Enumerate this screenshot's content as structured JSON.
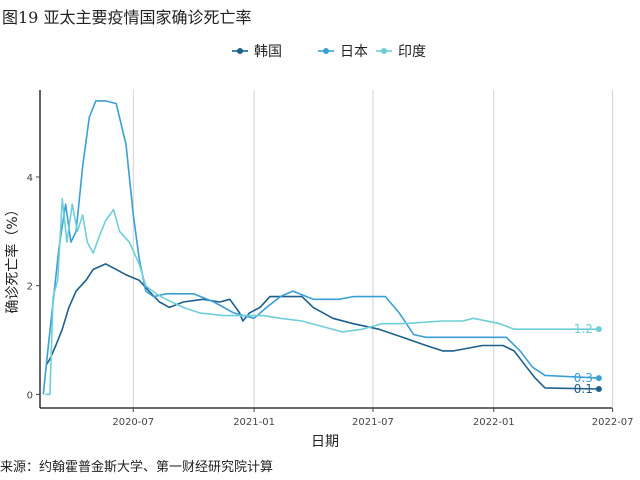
{
  "title": "图19 亚太主要疫情国家确诊死亡率",
  "source": "来源：约翰霍普金斯大学、第一财经研究院计算",
  "chart_data": {
    "type": "line",
    "xlabel": "日期",
    "ylabel": "确诊死亡率（%）",
    "ylim": [
      -0.25,
      5.6
    ],
    "xlim": [
      "2020-02-10",
      "2022-06-30"
    ],
    "x_ticks": [
      "2020-07",
      "2021-01",
      "2021-07",
      "2022-01",
      "2022-07"
    ],
    "y_ticks": [
      0,
      2,
      4
    ],
    "grid": "vertical",
    "legend_position": "top",
    "series": [
      {
        "name": "韩国",
        "color": "#1f5f8b",
        "end_label": "0.1",
        "points": [
          [
            "2020-02-20",
            0.55
          ],
          [
            "2020-02-25",
            0.65
          ],
          [
            "2020-03-05",
            0.9
          ],
          [
            "2020-03-15",
            1.2
          ],
          [
            "2020-03-25",
            1.6
          ],
          [
            "2020-04-05",
            1.9
          ],
          [
            "2020-04-20",
            2.1
          ],
          [
            "2020-05-01",
            2.3
          ],
          [
            "2020-05-20",
            2.4
          ],
          [
            "2020-06-05",
            2.3
          ],
          [
            "2020-06-20",
            2.2
          ],
          [
            "2020-07-10",
            2.1
          ],
          [
            "2020-07-25",
            1.9
          ],
          [
            "2020-08-10",
            1.7
          ],
          [
            "2020-08-25",
            1.6
          ],
          [
            "2020-09-15",
            1.7
          ],
          [
            "2020-10-15",
            1.75
          ],
          [
            "2020-11-10",
            1.7
          ],
          [
            "2020-11-25",
            1.75
          ],
          [
            "2020-12-10",
            1.5
          ],
          [
            "2020-12-15",
            1.35
          ],
          [
            "2020-12-25",
            1.5
          ],
          [
            "2021-01-10",
            1.6
          ],
          [
            "2021-01-25",
            1.8
          ],
          [
            "2021-03-15",
            1.8
          ],
          [
            "2021-04-01",
            1.6
          ],
          [
            "2021-05-01",
            1.4
          ],
          [
            "2021-06-01",
            1.3
          ],
          [
            "2021-07-10",
            1.2
          ],
          [
            "2021-08-15",
            1.05
          ],
          [
            "2021-09-20",
            0.9
          ],
          [
            "2021-10-15",
            0.8
          ],
          [
            "2021-11-01",
            0.8
          ],
          [
            "2021-12-15",
            0.9
          ],
          [
            "2022-01-15",
            0.9
          ],
          [
            "2022-02-01",
            0.8
          ],
          [
            "2022-02-20",
            0.5
          ],
          [
            "2022-03-05",
            0.3
          ],
          [
            "2022-03-20",
            0.12
          ],
          [
            "2022-06-10",
            0.1
          ]
        ]
      },
      {
        "name": "日本",
        "color": "#3a9fd6",
        "end_label": "0.3",
        "points": [
          [
            "2020-02-15",
            0.0
          ],
          [
            "2020-02-20",
            0.6
          ],
          [
            "2020-03-01",
            1.7
          ],
          [
            "2020-03-10",
            2.7
          ],
          [
            "2020-03-20",
            3.5
          ],
          [
            "2020-03-28",
            2.8
          ],
          [
            "2020-04-05",
            3.0
          ],
          [
            "2020-04-15",
            4.2
          ],
          [
            "2020-04-25",
            5.1
          ],
          [
            "2020-05-05",
            5.4
          ],
          [
            "2020-05-20",
            5.4
          ],
          [
            "2020-06-05",
            5.35
          ],
          [
            "2020-06-20",
            4.6
          ],
          [
            "2020-07-01",
            3.3
          ],
          [
            "2020-07-10",
            2.5
          ],
          [
            "2020-07-20",
            1.9
          ],
          [
            "2020-08-01",
            1.8
          ],
          [
            "2020-08-20",
            1.85
          ],
          [
            "2020-10-01",
            1.85
          ],
          [
            "2020-11-01",
            1.7
          ],
          [
            "2020-12-01",
            1.5
          ],
          [
            "2021-01-01",
            1.4
          ],
          [
            "2021-01-20",
            1.6
          ],
          [
            "2021-02-10",
            1.8
          ],
          [
            "2021-03-01",
            1.9
          ],
          [
            "2021-04-01",
            1.75
          ],
          [
            "2021-05-10",
            1.75
          ],
          [
            "2021-06-01",
            1.8
          ],
          [
            "2021-07-20",
            1.8
          ],
          [
            "2021-08-10",
            1.5
          ],
          [
            "2021-09-01",
            1.1
          ],
          [
            "2021-09-20",
            1.05
          ],
          [
            "2021-10-15",
            1.05
          ],
          [
            "2022-01-20",
            1.05
          ],
          [
            "2022-02-10",
            0.8
          ],
          [
            "2022-03-01",
            0.5
          ],
          [
            "2022-03-20",
            0.35
          ],
          [
            "2022-06-10",
            0.3
          ]
        ]
      },
      {
        "name": "印度",
        "color": "#6fcfd8",
        "end_label": "1.2",
        "points": [
          [
            "2020-02-18",
            0.0
          ],
          [
            "2020-02-25",
            0.0
          ],
          [
            "2020-03-01",
            1.8
          ],
          [
            "2020-03-08",
            2.1
          ],
          [
            "2020-03-15",
            3.6
          ],
          [
            "2020-03-22",
            2.8
          ],
          [
            "2020-03-30",
            3.5
          ],
          [
            "2020-04-07",
            3.0
          ],
          [
            "2020-04-15",
            3.3
          ],
          [
            "2020-04-22",
            2.8
          ],
          [
            "2020-05-01",
            2.6
          ],
          [
            "2020-05-10",
            2.9
          ],
          [
            "2020-05-20",
            3.2
          ],
          [
            "2020-06-01",
            3.4
          ],
          [
            "2020-06-10",
            3.0
          ],
          [
            "2020-06-25",
            2.8
          ],
          [
            "2020-07-10",
            2.4
          ],
          [
            "2020-07-20",
            2.0
          ],
          [
            "2020-08-05",
            1.85
          ],
          [
            "2020-08-20",
            1.75
          ],
          [
            "2020-09-15",
            1.6
          ],
          [
            "2020-10-10",
            1.5
          ],
          [
            "2020-11-15",
            1.45
          ],
          [
            "2020-12-15",
            1.45
          ],
          [
            "2021-01-15",
            1.45
          ],
          [
            "2021-02-10",
            1.4
          ],
          [
            "2021-03-15",
            1.35
          ],
          [
            "2021-04-15",
            1.25
          ],
          [
            "2021-05-15",
            1.15
          ],
          [
            "2021-06-15",
            1.2
          ],
          [
            "2021-07-15",
            1.3
          ],
          [
            "2021-08-15",
            1.3
          ],
          [
            "2021-10-15",
            1.35
          ],
          [
            "2021-11-15",
            1.35
          ],
          [
            "2021-12-01",
            1.4
          ],
          [
            "2022-01-10",
            1.3
          ],
          [
            "2022-02-01",
            1.2
          ],
          [
            "2022-06-10",
            1.2
          ]
        ]
      }
    ]
  }
}
